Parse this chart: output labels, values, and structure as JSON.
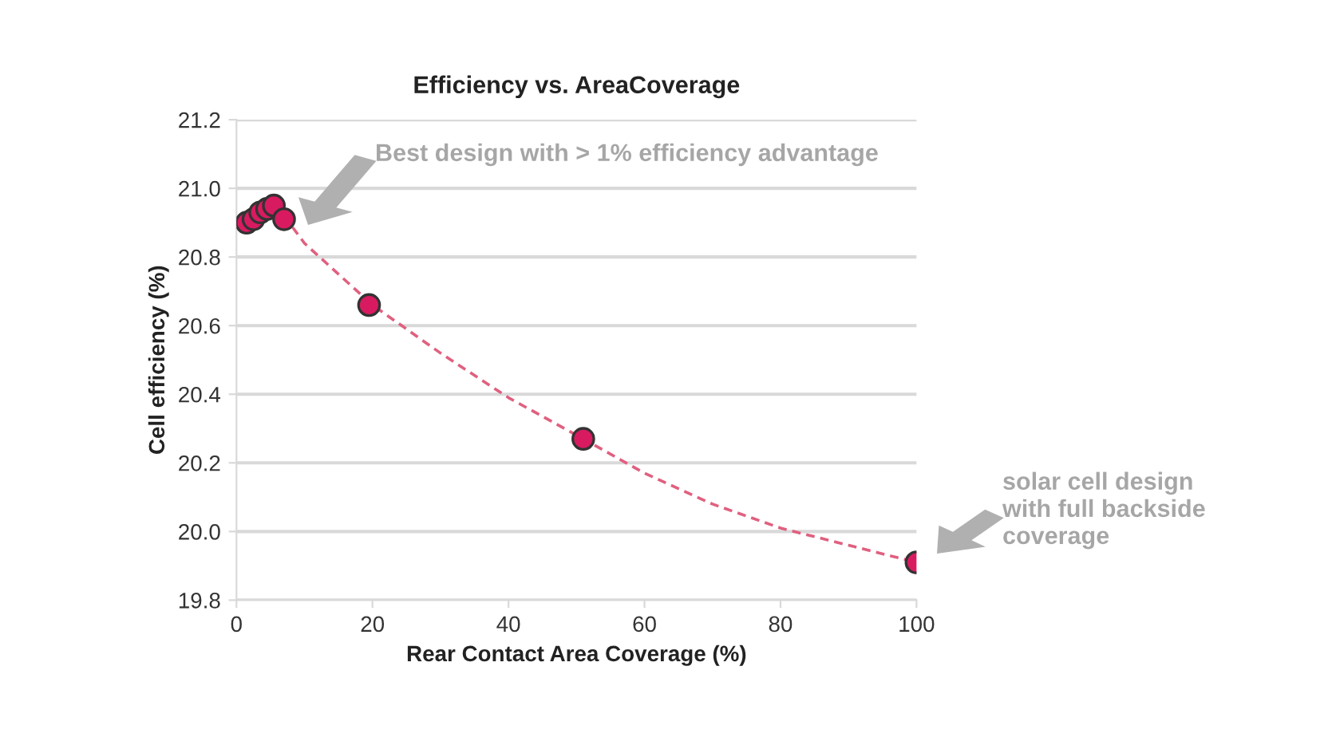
{
  "chart_data": {
    "type": "scatter",
    "title": "Efficiency vs. AreaCoverage",
    "xlabel": "Rear Contact Area Coverage (%)",
    "ylabel": "Cell efficiency (%)",
    "series": [
      {
        "color": "#d81b60",
        "x": [
          1.5,
          2.5,
          3.5,
          4.5,
          5.5,
          7,
          19.5,
          51,
          100
        ],
        "values": [
          20.9,
          20.91,
          20.93,
          20.94,
          20.95,
          20.91,
          20.66,
          20.27,
          19.91
        ],
        "marker": "circle"
      },
      {
        "type": "line",
        "color": "#e0607f",
        "line_style": "dashed",
        "x": [
          7,
          10,
          20,
          30,
          40,
          51,
          60,
          70,
          80,
          90,
          100
        ],
        "values": [
          20.92,
          20.84,
          20.66,
          20.52,
          20.39,
          20.27,
          20.17,
          20.08,
          20.01,
          19.96,
          19.91
        ]
      }
    ],
    "xlim": [
      0,
      100
    ],
    "xticks": [
      0,
      20,
      40,
      60,
      80,
      100
    ],
    "ylim": [
      19.8,
      21.2
    ],
    "yticks": [
      {
        "value": 19.8,
        "label": "19.8"
      },
      {
        "value": 20.0,
        "label": "20.0"
      },
      {
        "value": 20.2,
        "label": "20.2"
      },
      {
        "value": 20.4,
        "label": "20.4"
      },
      {
        "value": 20.6,
        "label": "20.6"
      },
      {
        "value": 20.8,
        "label": "20.8"
      },
      {
        "value": 21.0,
        "label": "21.0"
      },
      {
        "value": 21.2,
        "label": "21.2"
      }
    ],
    "grid": "y",
    "annotations": [
      "Best design with > 1% efficiency advantage",
      "solar cell design\nwith full backside\ncoverage"
    ]
  }
}
